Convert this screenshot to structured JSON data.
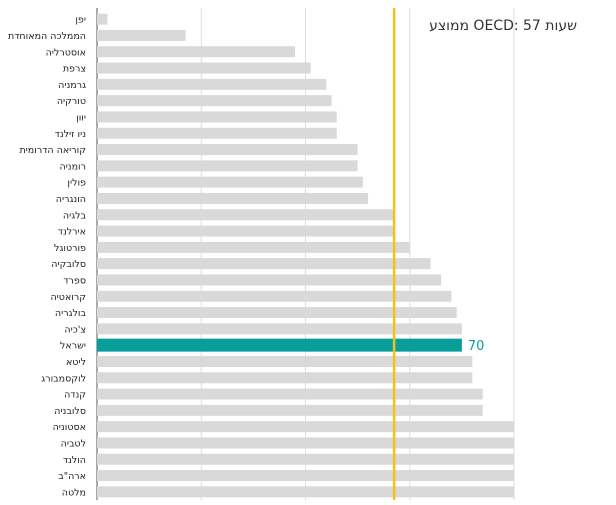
{
  "chart_data": {
    "type": "bar",
    "orientation": "horizontal",
    "direction": "rtl",
    "categories": [
      "יפן",
      "הממלכה המאוחדת",
      "אוסטרליה",
      "צרפת",
      "גרמניה",
      "טורקיה",
      "יוון",
      "ניו זילנד",
      "קוריאה הדרומית",
      "רומניה",
      "פולין",
      "הונגריה",
      "בלגיה",
      "אירלנד",
      "פורטוגל",
      "סלובקיה",
      "ספרד",
      "קרואטיה",
      "בולגריה",
      "צ'כיה",
      "ישראל",
      "ליטא",
      "לוקסמבורג",
      "קנדה",
      "סלובניה",
      "אסטוניה",
      "לטביה",
      "הולנד",
      "ארה\"ב",
      "מלטה"
    ],
    "values": [
      2,
      17,
      38,
      41,
      44,
      45,
      46,
      46,
      50,
      50,
      51,
      52,
      57,
      57,
      60,
      64,
      66,
      68,
      69,
      70,
      70,
      72,
      72,
      74,
      74,
      80,
      80,
      80,
      80,
      80
    ],
    "highlight": {
      "category": "ישראל",
      "value_label": "70",
      "color": "#0a9e9a"
    },
    "reference_line": {
      "value": 57,
      "label": "ממוצע OECD: 57 שעות",
      "color": "#f2c21b"
    },
    "xlim": [
      0,
      80
    ],
    "grid": true,
    "bar_color": "#d9d9d9"
  }
}
